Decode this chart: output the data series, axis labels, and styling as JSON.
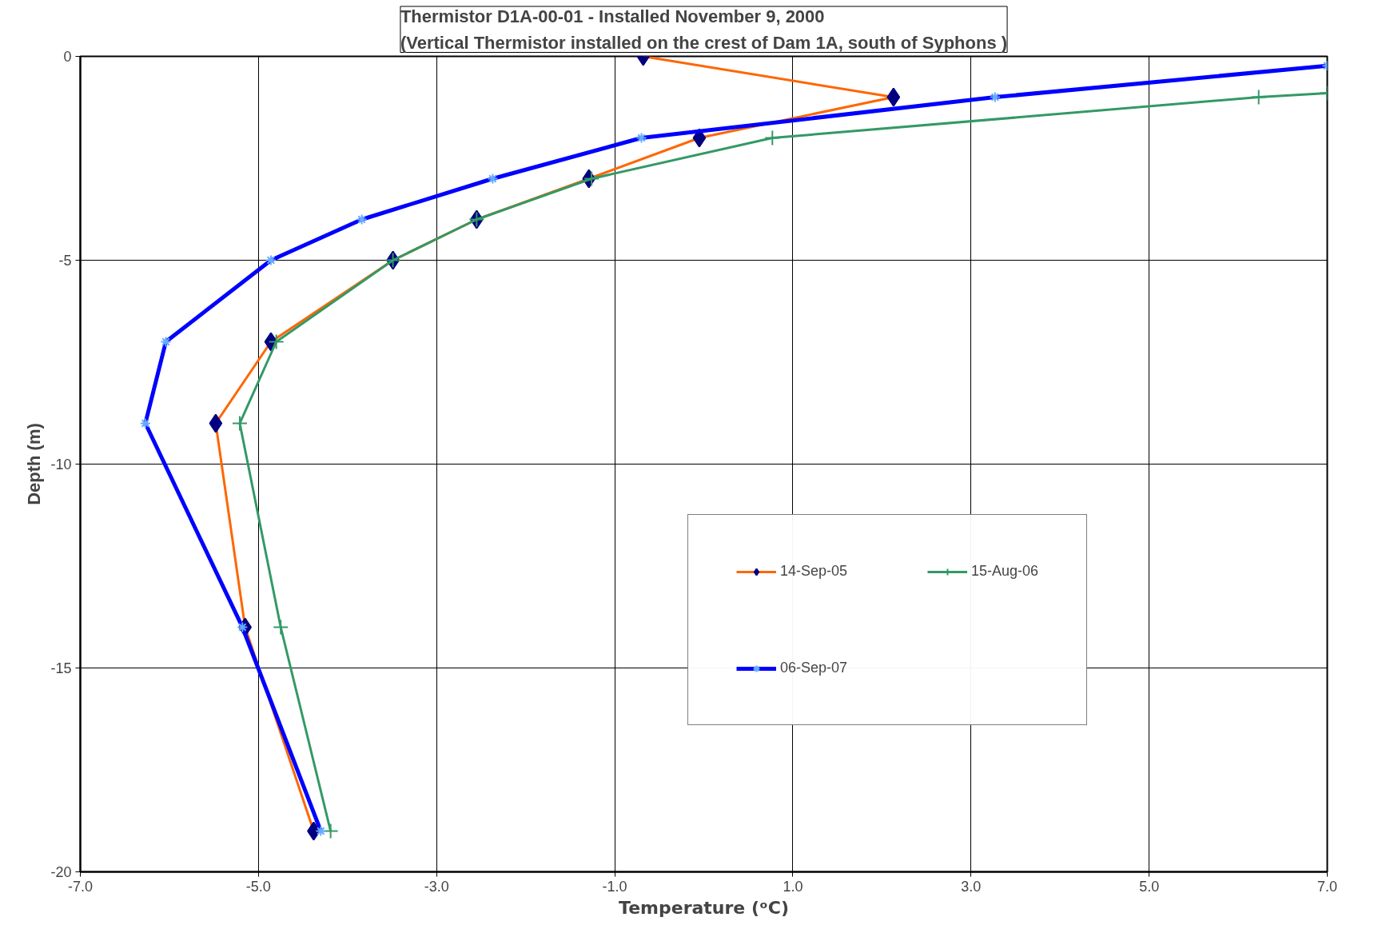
{
  "chart_data": {
    "type": "line",
    "title": "Thermistor D1A-00-01 - Installed November 9, 2000\n(Vertical Thermistor installed on the crest of Dam 1A, south of Syphons )",
    "xlabel": "Temperature (ᵒC)",
    "ylabel": "Depth (m)",
    "series": [
      {
        "name": "14-Sep-05",
        "color": "#ff6600",
        "marker": "diamond",
        "x": [
          -0.68,
          2.13,
          -0.05,
          -1.29,
          -2.55,
          -3.49,
          -4.86,
          -5.48,
          -5.15,
          -4.38
        ],
        "values": [
          0,
          -1,
          -2,
          -3,
          -4,
          -5,
          -7,
          -9,
          -14,
          -19
        ]
      },
      {
        "name": "15-Aug-06",
        "color": "#339966",
        "marker": "cross",
        "x": [
          7,
          6.23,
          0.77,
          -1.26,
          -2.55,
          -3.49,
          -4.8,
          -5.21,
          -4.75,
          -4.19
        ],
        "values": [
          -0.9,
          -1,
          -2,
          -3,
          -4,
          -5,
          -7,
          -9,
          -14,
          -19
        ]
      },
      {
        "name": "06-Sep-07",
        "color": "#0000ff",
        "marker": "cross",
        "x": [
          7,
          3.27,
          -0.7,
          -2.37,
          -3.84,
          -4.86,
          -6.04,
          -6.27,
          -5.18,
          -4.3
        ],
        "values": [
          -0.23,
          -1,
          -2,
          -3,
          -4,
          -5,
          -7,
          -9,
          -14,
          -19
        ]
      }
    ],
    "xlim": [
      -7,
      7
    ],
    "ylim": [
      -20,
      0
    ],
    "xticks": [
      {
        "value": -7,
        "label": "-7.0"
      },
      {
        "value": -5,
        "label": "-5.0"
      },
      {
        "value": -3,
        "label": "-3.0"
      },
      {
        "value": -1,
        "label": "-1.0"
      },
      {
        "value": 1,
        "label": "1.0"
      },
      {
        "value": 3,
        "label": "3.0"
      },
      {
        "value": 5,
        "label": "5.0"
      },
      {
        "value": 7,
        "label": "7.0"
      }
    ],
    "yticks": [
      0,
      -5,
      -10,
      -15,
      -20
    ],
    "grid": true,
    "legend": "center"
  }
}
